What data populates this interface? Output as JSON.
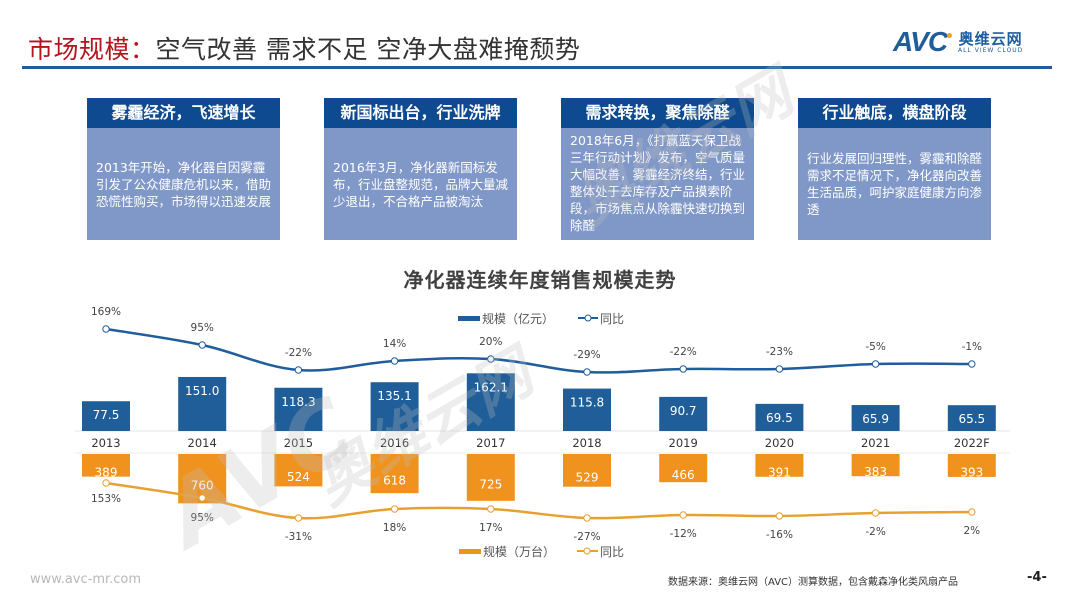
{
  "header": {
    "title_highlight": "市场规模：",
    "title_rest": "空气改善 需求不足 空净大盘难掩颓势",
    "logo_mark": "AVC",
    "logo_name": "奥维云网",
    "logo_tagline": "ALL VIEW CLOUD"
  },
  "cards": [
    {
      "heading": "雾霾经济，飞速增长",
      "body": "2013年开始，净化器自因雾霾引发了公众健康危机以来，借助恐慌性购买，市场得以迅速发展"
    },
    {
      "heading": "新国标出台，行业洗牌",
      "body": "2016年3月，净化器新国标发布，行业盘整规范，品牌大量减少退出，不合格产品被淘汰"
    },
    {
      "heading": "需求转换，聚焦除醛",
      "body": "2018年6月，《打赢蓝天保卫战三年行动计划》发布，空气质量大幅改善，雾霾经济终结，行业整体处于去库存及产品摸索阶段，市场焦点从除霾快速切换到除醛"
    },
    {
      "heading": "行业触底，横盘阶段",
      "body": "行业发展回归理性，雾霾和除醛需求不足情况下，净化器向改善生活品质，呵护家庭健康方向渗透"
    }
  ],
  "colors": {
    "brand_blue": "#1f5d9c",
    "title_red": "#b3151d",
    "card_header": "#0e4a8f",
    "card_body": "#8098c8",
    "sales_bar": "#1f5e99",
    "volume_bar": "#f0921e"
  },
  "chart_data": {
    "type": "bar",
    "title": "净化器连续年度销售规模走势",
    "categories": [
      "2013",
      "2014",
      "2015",
      "2016",
      "2017",
      "2018",
      "2019",
      "2020",
      "2021",
      "2022F"
    ],
    "series": [
      {
        "name": "规模（亿元）",
        "kind": "bar",
        "position": "top",
        "values": [
          77.5,
          151.0,
          118.3,
          135.1,
          162.1,
          115.8,
          90.7,
          69.5,
          65.9,
          65.5
        ],
        "labels": [
          "77.5",
          "151.0",
          "118.3",
          "135.1",
          "162.1",
          "115.8",
          "90.7",
          "69.5",
          "65.9",
          "65.5"
        ]
      },
      {
        "name": "同比",
        "kind": "line",
        "position": "top",
        "values": [
          169,
          95,
          -22,
          14,
          20,
          -29,
          -22,
          -23,
          -5,
          -1
        ],
        "labels": [
          "169%",
          "95%",
          "-22%",
          "14%",
          "20%",
          "-29%",
          "-22%",
          "-23%",
          "-5%",
          "-1%"
        ]
      },
      {
        "name": "规模（万台）",
        "kind": "bar",
        "position": "bottom",
        "values": [
          389,
          760,
          524,
          618,
          725,
          529,
          466,
          391,
          383,
          393
        ],
        "labels": [
          "389",
          "760",
          "524",
          "618",
          "725",
          "529",
          "466",
          "391",
          "383",
          "393"
        ]
      },
      {
        "name": "同比",
        "kind": "line",
        "position": "bottom",
        "values": [
          153,
          95,
          -31,
          18,
          17,
          -27,
          -12,
          -16,
          -2,
          2
        ],
        "labels": [
          "153%",
          "95%",
          "-31%",
          "18%",
          "17%",
          "-27%",
          "-12%",
          "-16%",
          "-2%",
          "2%"
        ]
      }
    ],
    "legend": [
      {
        "label": "规模（亿元）",
        "placement": "top-center"
      },
      {
        "label": "同比",
        "placement": "top-center"
      },
      {
        "label": "规模（万台）",
        "placement": "bottom-center"
      },
      {
        "label": "同比",
        "placement": "bottom-center"
      }
    ],
    "xlabel": "",
    "ylabel": "",
    "grid": false
  },
  "footer": {
    "url": "www.avc-mr.com",
    "source": "数据来源：奥维云网（AVC）测算数据，包含戴森净化类风扇产品",
    "page": "-4-"
  },
  "watermark": {
    "mark": "AVC",
    "name": "奥维云网",
    "tagline": "ALL VIEW CLOUD"
  }
}
